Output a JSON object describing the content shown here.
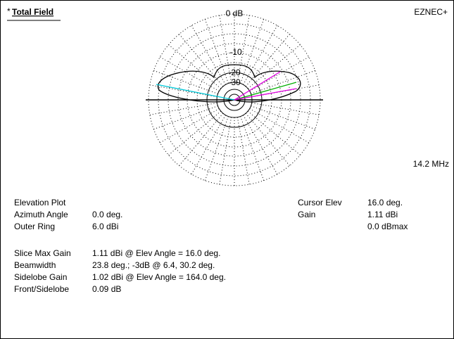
{
  "header": {
    "title": "Total Field",
    "marker": "*",
    "app": "EZNEC+"
  },
  "plot": {
    "ring_labels": [
      "0 dB",
      "-10",
      "-20",
      "-30"
    ],
    "frequency": "14.2 MHz"
  },
  "info": {
    "left": [
      [
        "Elevation Plot",
        ""
      ],
      [
        "Azimuth Angle",
        "0.0 deg."
      ],
      [
        "Outer Ring",
        "6.0 dBi"
      ]
    ],
    "right": [
      [
        "Cursor Elev",
        "16.0 deg."
      ],
      [
        "Gain",
        "1.11 dBi"
      ],
      [
        "",
        "0.0 dBmax"
      ]
    ],
    "stats": [
      [
        "Slice Max Gain",
        "1.11 dBi @ Elev Angle = 16.0 deg."
      ],
      [
        "Beamwidth",
        "23.8 deg.; -3dB @ 6.4, 30.2 deg."
      ],
      [
        "Sidelobe Gain",
        "1.02 dBi @ Elev Angle = 164.0 deg."
      ],
      [
        "Front/Sidelobe",
        "0.09 dB"
      ]
    ]
  }
}
